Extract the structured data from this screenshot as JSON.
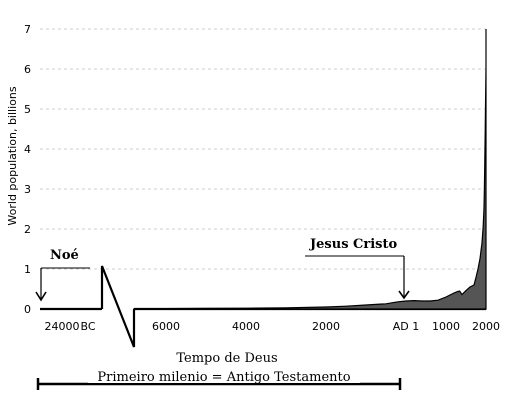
{
  "chart_data": {
    "type": "area",
    "ylabel": "World population, billions",
    "ylim": [
      0,
      7
    ],
    "yticks": [
      "0",
      "1",
      "2",
      "3",
      "4",
      "5",
      "6",
      "7"
    ],
    "grid": "horizontal dashed",
    "xtick_labels": [
      "24000",
      "BC",
      "6000",
      "4000",
      "2000",
      "AD 1",
      "1000",
      "2000"
    ],
    "series": [
      {
        "x": [
          -8000,
          -6000,
          -5000,
          -4000,
          -3000,
          -2000,
          -1500,
          -1000,
          -500,
          -200,
          1,
          200,
          400,
          600,
          800,
          1000,
          1100,
          1200,
          1250,
          1300,
          1340,
          1400,
          1500,
          1600,
          1700,
          1750,
          1800,
          1850,
          1900,
          1930,
          1950,
          1960,
          1970,
          1980,
          1990,
          2000,
          2011
        ],
        "y": [
          0.005,
          0.01,
          0.015,
          0.02,
          0.03,
          0.05,
          0.07,
          0.1,
          0.13,
          0.18,
          0.2,
          0.21,
          0.2,
          0.2,
          0.22,
          0.3,
          0.35,
          0.4,
          0.42,
          0.44,
          0.45,
          0.36,
          0.46,
          0.55,
          0.6,
          0.79,
          1.0,
          1.26,
          1.65,
          2.07,
          2.52,
          3.02,
          3.7,
          4.44,
          5.28,
          6.07,
          7.0
        ]
      }
    ],
    "annotations": {
      "noe": "Noé",
      "jesus": "Jesus Cristo",
      "xlabel": "Tempo de Deus",
      "bracket_label": "Primeiro milenio = Antigo Testamento"
    },
    "colors": {
      "fill": "#555555",
      "line": "#000000"
    }
  }
}
